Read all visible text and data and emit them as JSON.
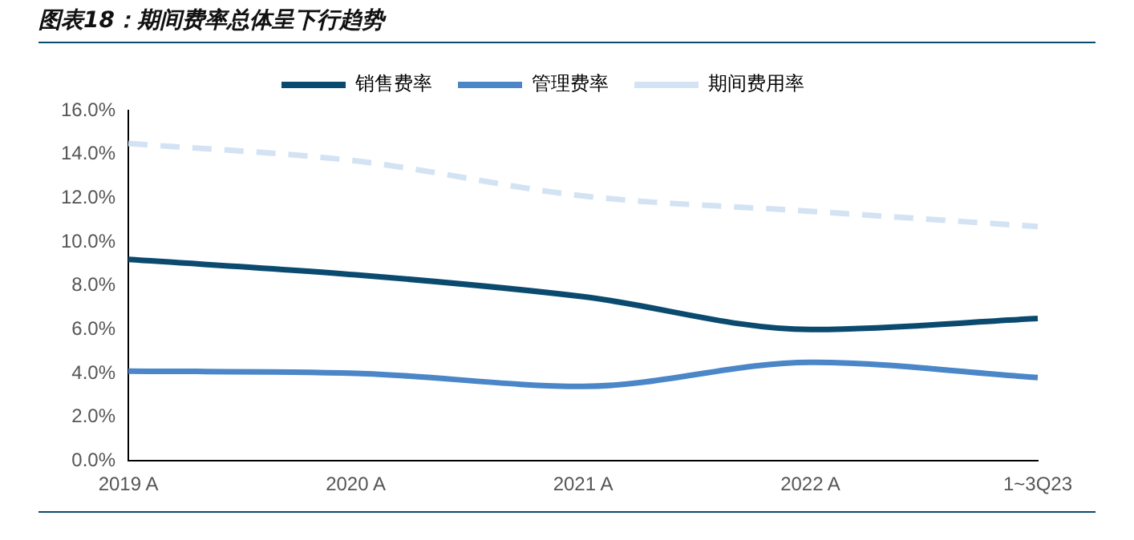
{
  "chart_data": {
    "type": "line",
    "title": "图表18：期间费率总体呈下行趋势",
    "categories": [
      "2019 A",
      "2020 A",
      "2021 A",
      "2022 A",
      "1~3Q23"
    ],
    "series": [
      {
        "name": "销售费率",
        "color": "#0b4a6f",
        "values": [
          9.2,
          8.5,
          7.5,
          6.0,
          6.5
        ]
      },
      {
        "name": "管理费率",
        "color": "#4a86c8",
        "values": [
          4.1,
          4.0,
          3.4,
          4.5,
          3.8
        ]
      },
      {
        "name": "期间费用率",
        "color": "#d3e3f4",
        "values": [
          14.5,
          13.7,
          12.1,
          11.4,
          10.7
        ],
        "line_style": "dashed"
      }
    ],
    "ylim": [
      0,
      16
    ],
    "yticks": [
      {
        "value": 0,
        "label": "0.0%"
      },
      {
        "value": 2,
        "label": "2.0%"
      },
      {
        "value": 4,
        "label": "4.0%"
      },
      {
        "value": 6,
        "label": "6.0%"
      },
      {
        "value": 8,
        "label": "8.0%"
      },
      {
        "value": 10,
        "label": "10.0%"
      },
      {
        "value": 12,
        "label": "12.0%"
      },
      {
        "value": 14,
        "label": "14.0%"
      },
      {
        "value": 16,
        "label": "16.0%"
      }
    ],
    "grid": false,
    "legend": "top",
    "marker": "none",
    "line_style": "solid"
  }
}
